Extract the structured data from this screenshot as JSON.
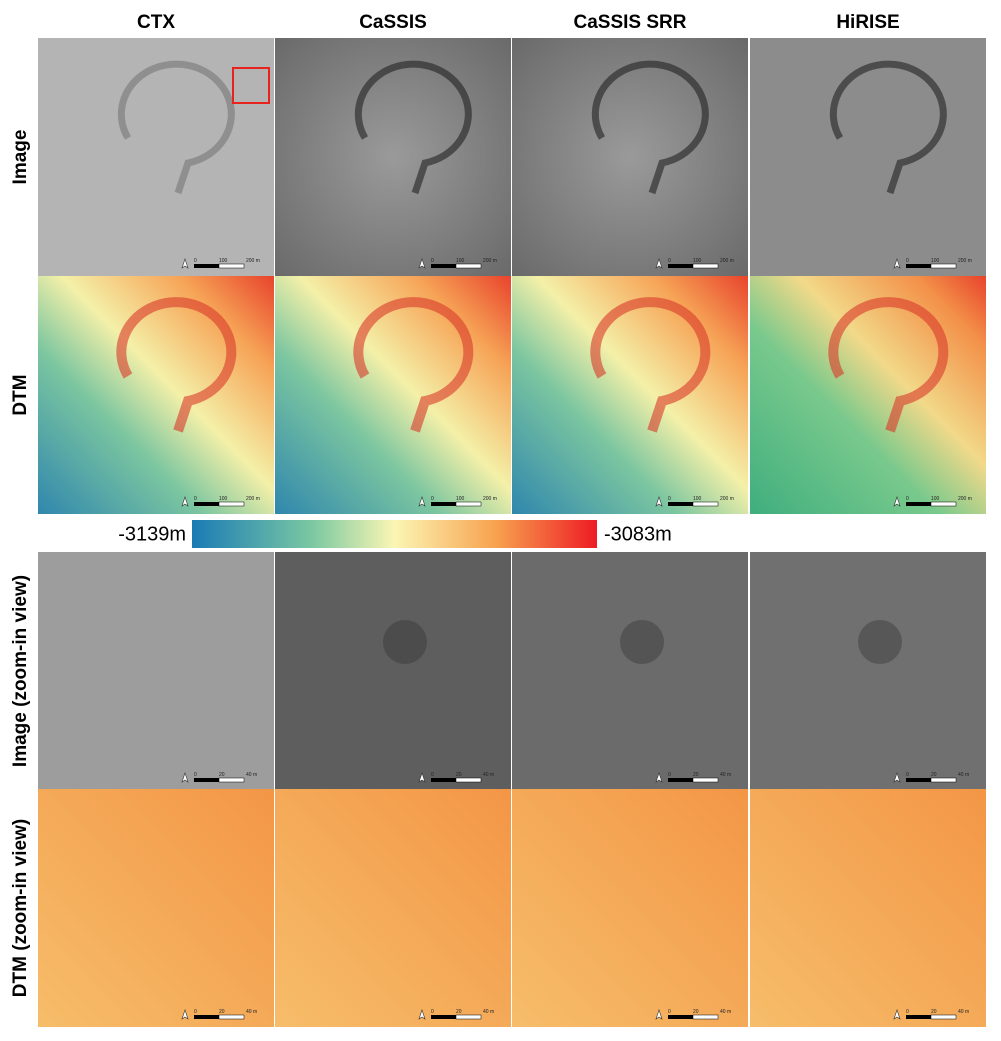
{
  "columns": [
    "CTX",
    "CaSSIS",
    "CaSSIS SRR",
    "HiRISE"
  ],
  "rows": [
    "Image",
    "DTM",
    "Image (zoom-in view)",
    "DTM (zoom-in view)"
  ],
  "colorbar": {
    "min_label": "-3139m",
    "max_label": "-3083m"
  },
  "scale_bar": {
    "full": [
      "0",
      "100",
      "200 m"
    ],
    "zoom": [
      "0",
      "20",
      "40 m"
    ]
  }
}
